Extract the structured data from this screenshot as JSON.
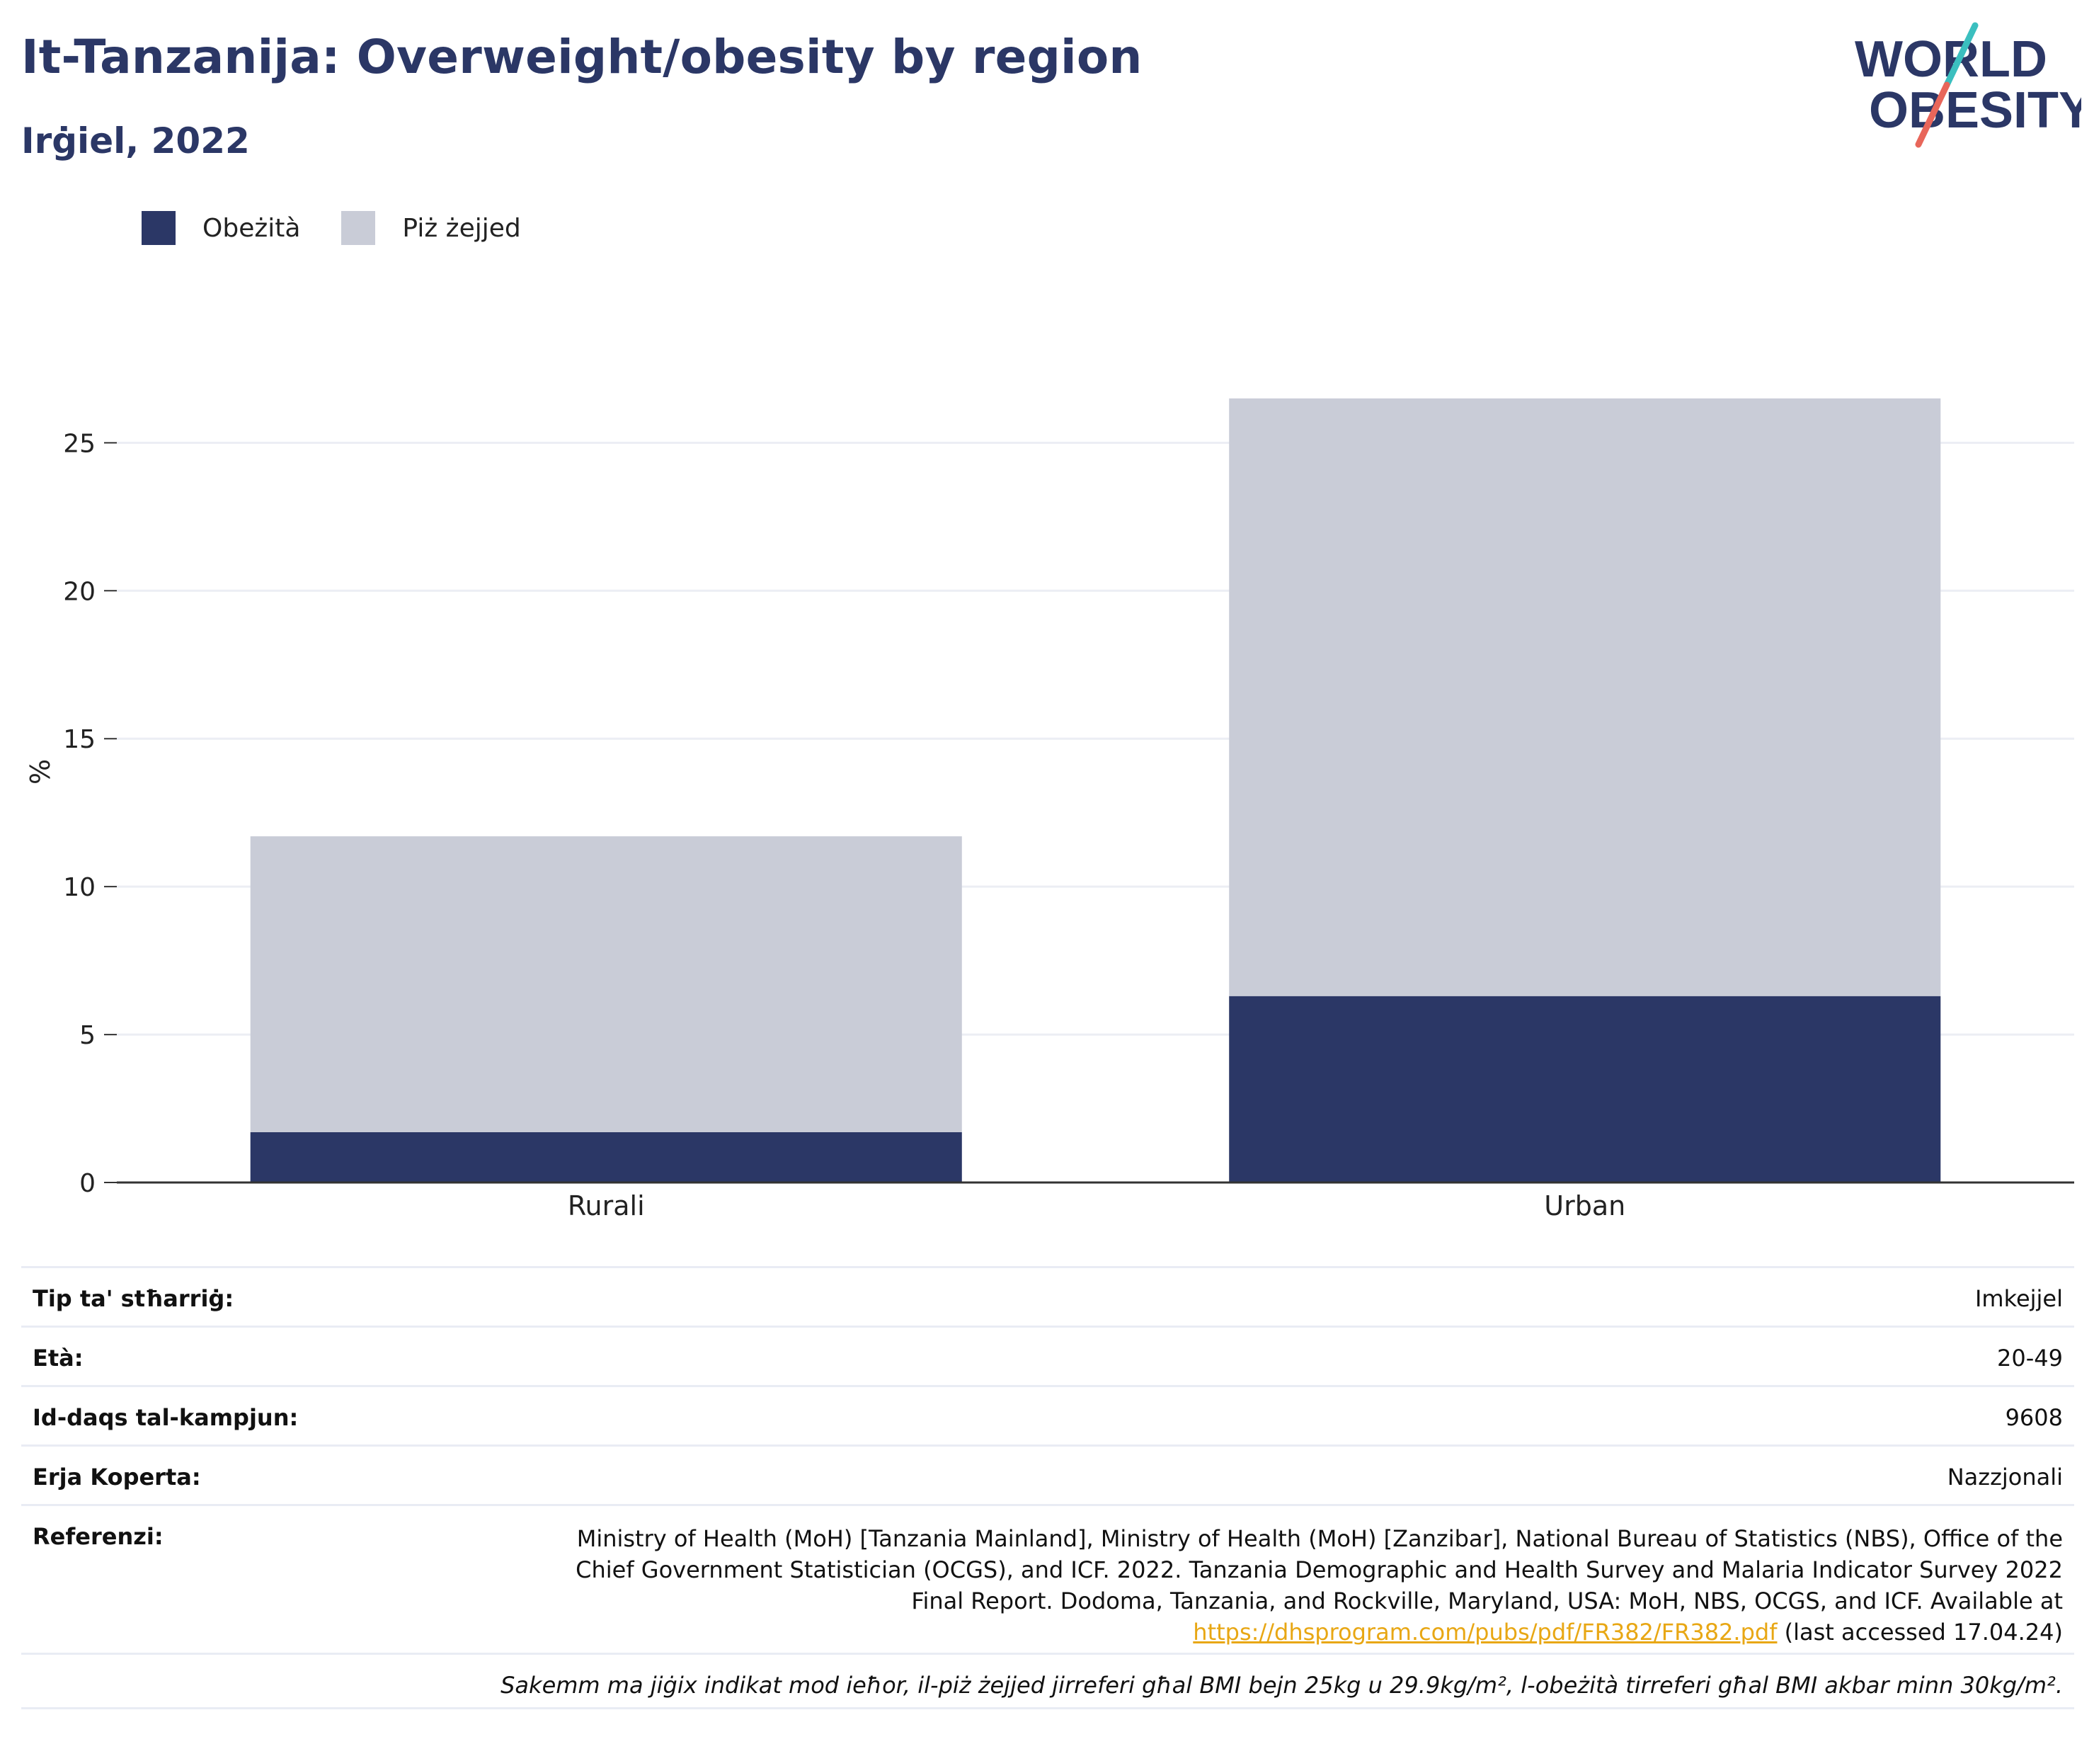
{
  "header": {
    "title": "It-Tanzanija: Overweight/obesity by region",
    "subtitle": "Irġiel, 2022"
  },
  "logo": {
    "line1": "WORLD",
    "line2": "OBESITY",
    "colors": {
      "text": "#2b3766",
      "slash_teal": "#3bbfbf",
      "slash_red": "#e8665a"
    }
  },
  "colors": {
    "obesity": "#2b3766",
    "overweight": "#c9ccd7",
    "gridline": "#eceef4",
    "axis": "#333333",
    "link": "#e8a714"
  },
  "chart_data": {
    "type": "bar",
    "stacked": true,
    "categories": [
      "Rurali",
      "Urban"
    ],
    "series": [
      {
        "name": "Obeżità",
        "values": [
          1.7,
          6.3
        ],
        "color": "#2b3766"
      },
      {
        "name": "Piż żejjed",
        "values": [
          10.0,
          20.2
        ],
        "color": "#c9ccd7"
      }
    ],
    "ylabel": "%",
    "ylim": [
      0,
      28
    ],
    "yticks": [
      0,
      5,
      10,
      15,
      20,
      25
    ],
    "grid": true,
    "legend_position": "top-left"
  },
  "meta": {
    "rows": [
      {
        "key": "Tip ta' stħarriġ:",
        "value": "Imkejjel"
      },
      {
        "key": "Età:",
        "value": "20-49"
      },
      {
        "key": "Id-daqs tal-kampjun:",
        "value": "9608"
      },
      {
        "key": "Erja Koperta:",
        "value": "Nazzjonali"
      }
    ],
    "reference": {
      "key": "Referenzi:",
      "line1": "Ministry of Health (MoH) [Tanzania Mainland], Ministry of Health (MoH) [Zanzibar], National Bureau of Statistics (NBS), Office of the",
      "line2": "Chief Government Statistician (OCGS), and ICF. 2022. Tanzania Demographic and Health Survey and Malaria Indicator Survey 2022",
      "line3": "Final Report. Dodoma, Tanzania, and Rockville, Maryland, USA: MoH, NBS, OCGS, and ICF. Available at",
      "link": "https://dhsprogram.com/pubs/pdf/FR382/FR382.pdf",
      "after_link": " (last accessed 17.04.24)"
    },
    "note": "Sakemm ma jiġix indikat mod ieħor, il-piż żejjed jirreferi għal BMI bejn 25kg u 29.9kg/m², l-obeżità tirreferi għal BMI akbar minn 30kg/m²."
  }
}
